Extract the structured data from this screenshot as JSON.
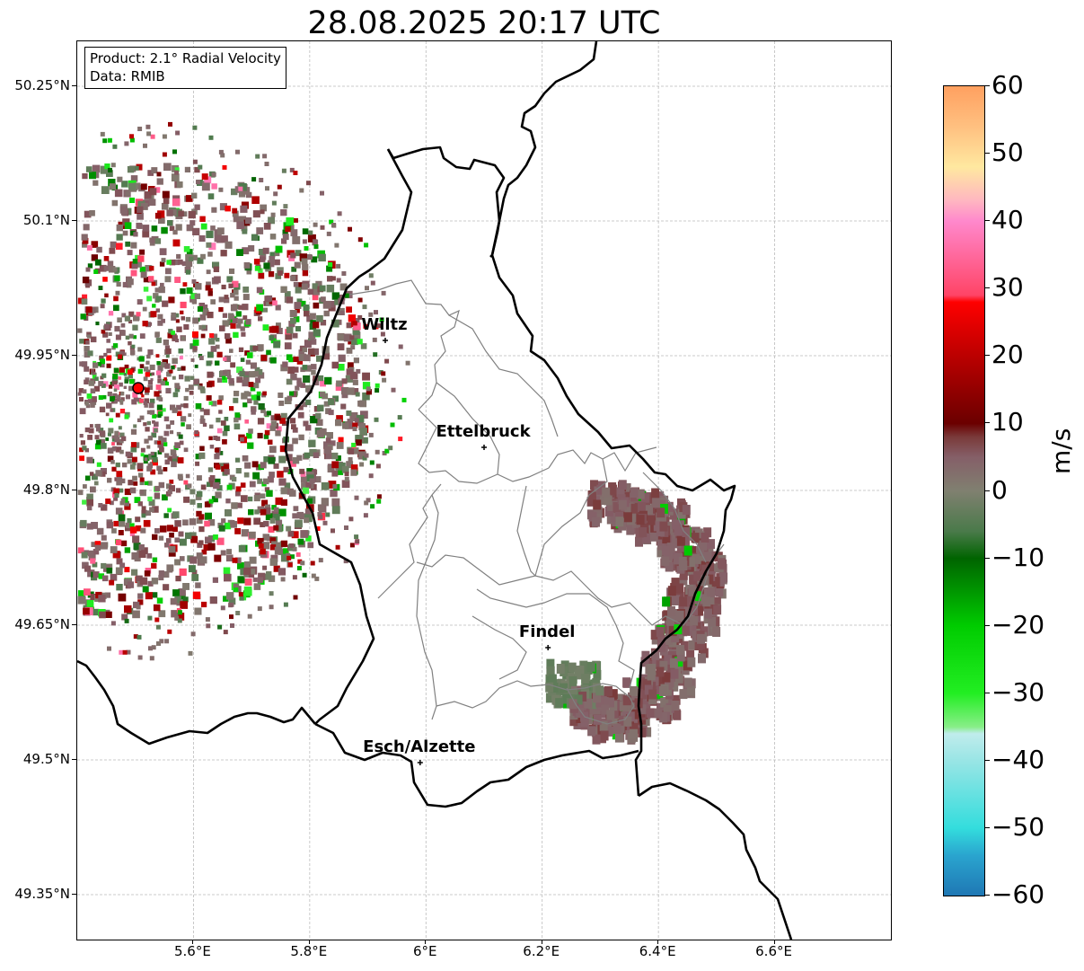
{
  "title": "28.08.2025 20:17 UTC",
  "info": {
    "product": "Product: 2.1° Radial Velocity",
    "data": "Data: RMIB"
  },
  "map": {
    "lat_ticks": [
      "50.25°N",
      "50.1°N",
      "49.95°N",
      "49.8°N",
      "49.65°N",
      "49.5°N",
      "49.35°N"
    ],
    "lon_ticks": [
      "5.6°E",
      "5.8°E",
      "6°E",
      "6.2°E",
      "6.4°E",
      "6.6°E"
    ],
    "extent": {
      "lon_min": 5.4,
      "lon_max": 6.8,
      "lat_min": 49.3,
      "lat_max": 50.3
    },
    "radar_site": {
      "lon": 5.505,
      "lat": 49.914,
      "color": "#ff0000"
    },
    "cities": [
      {
        "name": "Wiltz",
        "lon": 5.93,
        "lat": 49.967
      },
      {
        "name": "Ettelbruck",
        "lon": 6.1,
        "lat": 49.848
      },
      {
        "name": "Findel",
        "lon": 6.21,
        "lat": 49.625
      },
      {
        "name": "Esch/Alzette",
        "lon": 5.99,
        "lat": 49.497
      }
    ],
    "grid": true,
    "border_color": "#000000",
    "canton_color": "#808080"
  },
  "colorbar": {
    "unit": "m/s",
    "min": -60,
    "max": 60,
    "ticks": [
      "60",
      "50",
      "40",
      "30",
      "20",
      "10",
      "0",
      "−10",
      "−20",
      "−30",
      "−40",
      "−50",
      "−60"
    ],
    "tick_values": [
      60,
      50,
      40,
      30,
      20,
      10,
      0,
      -10,
      -20,
      -30,
      -40,
      -50,
      -60
    ],
    "stops": [
      {
        "value": -60,
        "color": "#1f78b4"
      },
      {
        "value": -54,
        "color": "#2aa5cf"
      },
      {
        "value": -50,
        "color": "#33dddd"
      },
      {
        "value": -40,
        "color": "#99e5e5"
      },
      {
        "value": -36,
        "color": "#c0ecec"
      },
      {
        "value": -35,
        "color": "#88ee88"
      },
      {
        "value": -30,
        "color": "#22ee22"
      },
      {
        "value": -20,
        "color": "#00cc00"
      },
      {
        "value": -10,
        "color": "#006400"
      },
      {
        "value": -6,
        "color": "#4a7a4a"
      },
      {
        "value": 0,
        "color": "#808070"
      },
      {
        "value": 5,
        "color": "#855f68"
      },
      {
        "value": 8,
        "color": "#7a3a3a"
      },
      {
        "value": 10,
        "color": "#6b0000"
      },
      {
        "value": 20,
        "color": "#bb0000"
      },
      {
        "value": 28,
        "color": "#ff0000"
      },
      {
        "value": 29,
        "color": "#ff4466"
      },
      {
        "value": 40,
        "color": "#ff88cc"
      },
      {
        "value": 43,
        "color": "#ffb6c1"
      },
      {
        "value": 48,
        "color": "#ffe8a0"
      },
      {
        "value": 54,
        "color": "#ffc080"
      },
      {
        "value": 60,
        "color": "#ffa060"
      }
    ]
  }
}
